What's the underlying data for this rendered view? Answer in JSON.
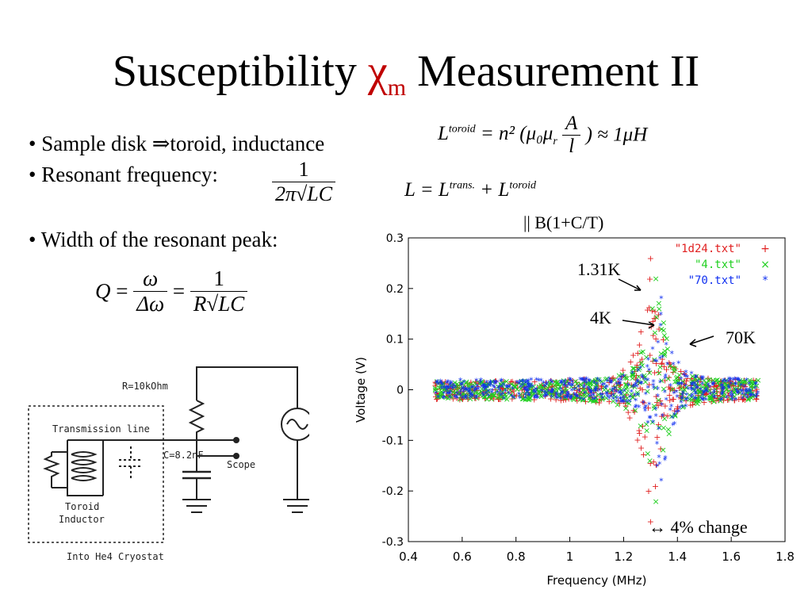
{
  "slide": {
    "title_pre": "Susceptibility ",
    "title_symbol": "χ",
    "title_sub": "m",
    "title_post": " Measurement II"
  },
  "bullets": {
    "b1": "• Sample disk ⇒toroid, inductance",
    "b2": "• Resonant frequency:",
    "b3": "• Width of the resonant peak:"
  },
  "equations": {
    "res_num": "1",
    "res_den": "2π√LC",
    "q_lhs": "Q",
    "q_eq1": "=",
    "q_num1": "ω",
    "q_den1": "Δω",
    "q_eq2": "=",
    "q_num2": "1",
    "q_den2": "R√LC",
    "ltor_lhs": "L",
    "ltor_sup": "toroid",
    "ltor_mid": "= n² (μ₀μ",
    "ltor_r": "r",
    "ltor_fnum": "A",
    "ltor_fden": "l",
    "ltor_rhs": ") ≈ 1μH",
    "lsum_lhs": "L = L",
    "lsum_sup1": "trans.",
    "lsum_plus": " + L",
    "lsum_sup2": "toroid",
    "bnote": "|| B(1+C/T)"
  },
  "circuit": {
    "resistor_label": "R=10kOhm",
    "line_label": "Transmission line",
    "cap_label": "C=8.2nF",
    "scope_label": "Scope",
    "toroid_label1": "Toroid",
    "toroid_label2": "Inductor",
    "cryostat_label": "Into He4 Cryostat"
  },
  "annotations": {
    "a131k": "1.31K",
    "a4k": "4K",
    "a70k": "70K",
    "change": "↔ 4% change"
  },
  "chart_data": {
    "type": "scatter",
    "xlabel": "Frequency (MHz)",
    "ylabel": "Voltage (V)",
    "xlim": [
      0.4,
      1.8
    ],
    "ylim": [
      -0.3,
      0.3
    ],
    "x_ticks": [
      "0.4",
      "0.6",
      "0.8",
      "1",
      "1.2",
      "1.4",
      "1.6",
      "1.8"
    ],
    "y_ticks": [
      "0.3",
      "0.2",
      "0.1",
      "0",
      "-0.1",
      "-0.2",
      "-0.3"
    ],
    "legend_position": "top-right",
    "series": [
      {
        "name": "\"1d24.txt\"",
        "marker": "+",
        "color": "#e02020",
        "center": 1.3,
        "peak_max": 0.26,
        "peak_min": -0.26
      },
      {
        "name": "\"4.txt\"",
        "marker": "×",
        "color": "#20d020",
        "center": 1.32,
        "peak_max": 0.22,
        "peak_min": -0.22
      },
      {
        "name": "\"70.txt\"",
        "marker": "*",
        "color": "#1030f0",
        "center": 1.34,
        "peak_max": 0.18,
        "peak_min": -0.18
      }
    ]
  }
}
